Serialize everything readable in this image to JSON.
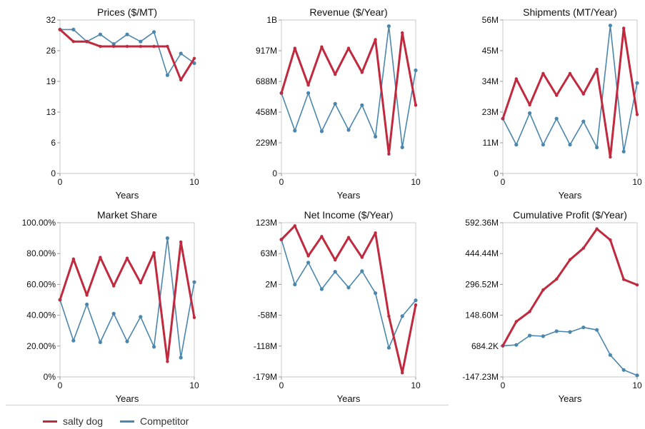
{
  "colors": {
    "salty_dog": "#c0293e",
    "competitor": "#4b87ad",
    "axis": "#999999",
    "frame": "#c8c8c8"
  },
  "legend": {
    "items": [
      {
        "name": "salty dog",
        "color": "#c0293e"
      },
      {
        "name": "Competitor",
        "color": "#4b87ad"
      }
    ]
  },
  "chart_data": [
    {
      "type": "line",
      "title": "Prices ($/MT)",
      "xlabel": "Years",
      "xticks": [
        "0",
        "10"
      ],
      "xlim": [
        0,
        10
      ],
      "yticks": [
        "0",
        "6",
        "13",
        "19",
        "26",
        "32"
      ],
      "ylim": [
        0,
        32
      ],
      "x": [
        0,
        1,
        2,
        3,
        4,
        5,
        6,
        7,
        8,
        9,
        10
      ],
      "series": [
        {
          "name": "salty dog",
          "values": [
            30,
            27.5,
            27.5,
            26.5,
            26.5,
            26.5,
            26.5,
            26.5,
            26.5,
            19.5,
            24
          ]
        },
        {
          "name": "Competitor",
          "values": [
            30,
            30,
            27.5,
            29,
            27,
            29,
            27.5,
            29.5,
            20.5,
            25,
            23
          ]
        }
      ]
    },
    {
      "type": "line",
      "title": "Revenue ($/Year)",
      "xlabel": "Years",
      "xticks": [
        "0",
        "10"
      ],
      "xlim": [
        0,
        10
      ],
      "yticks": [
        "0",
        "229M",
        "458M",
        "688M",
        "917M",
        "1B"
      ],
      "ylim": [
        0,
        1146
      ],
      "x": [
        0,
        1,
        2,
        3,
        4,
        5,
        6,
        7,
        8,
        9,
        10
      ],
      "series": [
        {
          "name": "salty dog",
          "values": [
            600,
            935,
            660,
            945,
            740,
            935,
            755,
            1000,
            145,
            1050,
            510
          ]
        },
        {
          "name": "Competitor",
          "values": [
            600,
            320,
            600,
            315,
            520,
            325,
            510,
            275,
            1100,
            195,
            770
          ]
        }
      ]
    },
    {
      "type": "line",
      "title": "Shipments (MT/Year)",
      "xlabel": "Years",
      "xticks": [
        "0",
        "10"
      ],
      "xlim": [
        0,
        10
      ],
      "yticks": [
        "0",
        "11M",
        "23M",
        "34M",
        "45M",
        "56M"
      ],
      "ylim": [
        0,
        56
      ],
      "x": [
        0,
        1,
        2,
        3,
        4,
        5,
        6,
        7,
        8,
        9,
        10
      ],
      "series": [
        {
          "name": "salty dog",
          "values": [
            20,
            34.5,
            25,
            36.5,
            28.5,
            36.5,
            29,
            38,
            6,
            53,
            21.5
          ]
        },
        {
          "name": "Competitor",
          "values": [
            20,
            10.5,
            22,
            10.5,
            20,
            10.5,
            19,
            9.5,
            54,
            8,
            33
          ]
        }
      ]
    },
    {
      "type": "line",
      "title": "Market Share",
      "xlabel": "Years",
      "xticks": [
        "0",
        "10"
      ],
      "xlim": [
        0,
        10
      ],
      "yticks": [
        "0%",
        "20.00%",
        "40.00%",
        "60.00%",
        "80.00%",
        "100.00%"
      ],
      "ylim": [
        0,
        100
      ],
      "x": [
        0,
        1,
        2,
        3,
        4,
        5,
        6,
        7,
        8,
        9,
        10
      ],
      "series": [
        {
          "name": "salty dog",
          "values": [
            50,
            76.5,
            53,
            77.5,
            59,
            77,
            61,
            80.5,
            10,
            87.5,
            38.5
          ]
        },
        {
          "name": "Competitor",
          "values": [
            50,
            23.5,
            47,
            22.5,
            41,
            23,
            39,
            19.5,
            90,
            12.5,
            61.5
          ]
        }
      ]
    },
    {
      "type": "line",
      "title": "Net Income ($/Year)",
      "xlabel": "Years",
      "xticks": [
        "0",
        "10"
      ],
      "xlim": [
        0,
        10
      ],
      "yticks": [
        "-179M",
        "-118M",
        "-58M",
        "2M",
        "63M",
        "123M"
      ],
      "ylim": [
        -179,
        123
      ],
      "x": [
        0,
        1,
        2,
        3,
        4,
        5,
        6,
        7,
        8,
        9,
        10
      ],
      "series": [
        {
          "name": "salty dog",
          "values": [
            90,
            117,
            58,
            96,
            50,
            94,
            55,
            103,
            -60,
            -171,
            -38
          ]
        },
        {
          "name": "Competitor",
          "values": [
            90,
            2,
            45,
            -7,
            27,
            -4,
            28,
            -15,
            -122,
            -60,
            -29
          ]
        }
      ]
    },
    {
      "type": "line",
      "title": "Cumulative Profit ($/Year)",
      "xlabel": "Years",
      "xticks": [
        "0",
        "10"
      ],
      "xlim": [
        0,
        10
      ],
      "yticks": [
        "-147.23M",
        "684.2K",
        "148.60M",
        "296.52M",
        "444.44M",
        "592.36M"
      ],
      "ylim": [
        -147.23,
        592.36
      ],
      "x": [
        0,
        1,
        2,
        3,
        4,
        5,
        6,
        7,
        8,
        9,
        10
      ],
      "series": [
        {
          "name": "salty dog",
          "values": [
            2,
            118,
            166,
            270,
            322,
            415,
            470,
            563,
            510,
            320,
            294
          ]
        },
        {
          "name": "Competitor",
          "values": [
            2,
            6,
            51,
            48,
            72,
            68,
            90,
            78,
            -42,
            -114,
            -140
          ]
        }
      ]
    }
  ]
}
